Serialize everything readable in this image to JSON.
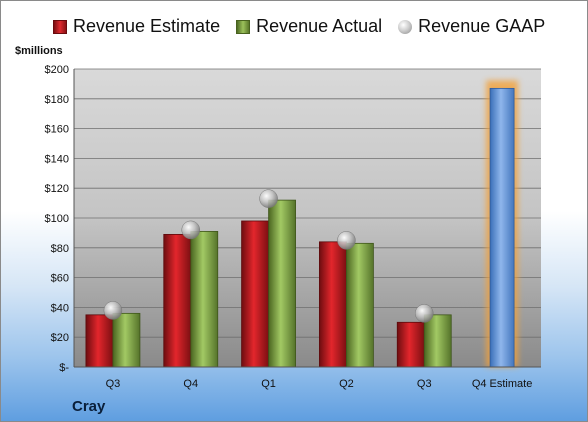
{
  "unit_label": "$millions",
  "company": "Cray",
  "chart_data": {
    "type": "bar",
    "categories": [
      "Q3",
      "Q4",
      "Q1",
      "Q2",
      "Q3",
      "Q4 Estimate"
    ],
    "series": [
      {
        "name": "Revenue Estimate",
        "values": [
          35,
          89,
          98,
          84,
          30,
          null
        ],
        "color": "#c8161d"
      },
      {
        "name": "Revenue Actual",
        "values": [
          36,
          91,
          112,
          83,
          35,
          null
        ],
        "color": "#86ad45"
      },
      {
        "name": "Revenue GAAP",
        "values": [
          38,
          92,
          113,
          85,
          36,
          null
        ],
        "color": "#b8b8b8"
      },
      {
        "name": "",
        "values": [
          null,
          null,
          null,
          null,
          null,
          187
        ],
        "color": "#5b8fd6"
      }
    ],
    "ylim": [
      0,
      200
    ],
    "yticks": [
      0,
      20,
      40,
      60,
      80,
      100,
      120,
      140,
      160,
      180,
      200
    ],
    "ytick_labels": [
      "$-",
      "$20",
      "$40",
      "$60",
      "$80",
      "$100",
      "$120",
      "$140",
      "$160",
      "$180",
      "$200"
    ],
    "grid": true,
    "legend": "top"
  }
}
